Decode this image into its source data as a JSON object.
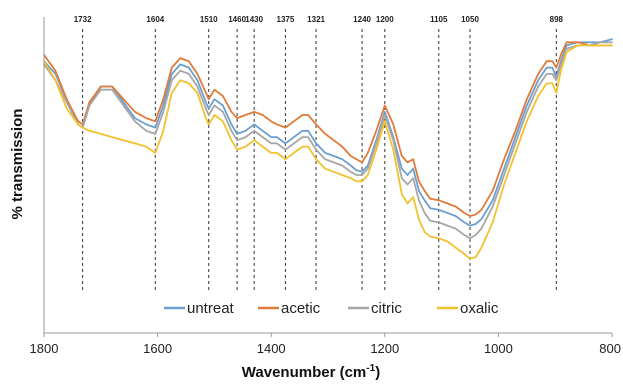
{
  "chart_data": {
    "type": "line",
    "xlabel": "Wavenumber (cm",
    "xlabel_sup": "-1",
    "xlabel_suffix": ")",
    "ylabel": "% transmission",
    "x_reversed": true,
    "xlim": [
      800,
      1800
    ],
    "ylim": [
      0,
      100
    ],
    "x_ticks": [
      1800,
      1600,
      1400,
      1200,
      1000,
      800
    ],
    "x_tick_labels": [
      "1800",
      "1600",
      "1400",
      "1200",
      "1000",
      "800"
    ],
    "grid": false,
    "legend_position": "bottom-center",
    "peak_markers": [
      1732,
      1604,
      1510,
      1460,
      1430,
      1375,
      1321,
      1240,
      1200,
      1105,
      1050,
      898
    ],
    "peak_marker_labels": [
      "1732",
      "1604",
      "1510",
      "1460",
      "1430",
      "1375",
      "1321",
      "1240",
      "1200",
      "1105",
      "1050",
      "898"
    ],
    "series": [
      {
        "name": "untreat",
        "color": "#6b9fd1",
        "x": [
          1800,
          1780,
          1760,
          1740,
          1732,
          1720,
          1700,
          1680,
          1660,
          1640,
          1620,
          1604,
          1590,
          1575,
          1560,
          1545,
          1530,
          1515,
          1510,
          1500,
          1485,
          1470,
          1460,
          1445,
          1430,
          1415,
          1400,
          1390,
          1375,
          1360,
          1345,
          1335,
          1321,
          1305,
          1290,
          1275,
          1260,
          1250,
          1240,
          1230,
          1215,
          1200,
          1185,
          1170,
          1160,
          1150,
          1140,
          1130,
          1120,
          1105,
          1090,
          1075,
          1060,
          1050,
          1040,
          1030,
          1010,
          990,
          970,
          950,
          930,
          915,
          905,
          898,
          890,
          880,
          860,
          840,
          820,
          800
        ],
        "y": [
          86,
          82,
          74,
          66,
          65,
          72,
          78,
          78,
          73,
          68,
          66,
          65,
          72,
          82,
          85,
          84,
          80,
          73,
          71,
          74,
          72,
          66,
          63,
          64,
          66,
          64,
          62,
          62,
          60,
          62,
          64,
          64,
          60,
          57,
          56,
          55,
          53,
          51.5,
          51,
          53,
          61,
          70,
          62,
          52,
          50,
          52,
          45,
          42,
          39.5,
          39,
          38,
          37,
          35,
          34,
          34.5,
          36,
          42,
          52,
          62,
          72,
          80,
          84,
          84,
          81,
          86,
          91,
          92,
          92,
          92,
          93
        ]
      },
      {
        "name": "acetic",
        "color": "#e07b39",
        "x": [
          1800,
          1780,
          1760,
          1740,
          1732,
          1720,
          1700,
          1680,
          1660,
          1640,
          1620,
          1604,
          1590,
          1575,
          1560,
          1545,
          1530,
          1515,
          1510,
          1500,
          1485,
          1470,
          1460,
          1445,
          1430,
          1415,
          1400,
          1390,
          1375,
          1360,
          1345,
          1335,
          1321,
          1305,
          1290,
          1275,
          1260,
          1250,
          1240,
          1230,
          1215,
          1200,
          1185,
          1170,
          1160,
          1150,
          1140,
          1130,
          1120,
          1105,
          1090,
          1075,
          1060,
          1050,
          1040,
          1030,
          1010,
          990,
          970,
          950,
          930,
          915,
          905,
          898,
          890,
          880,
          860,
          840,
          820,
          800
        ],
        "y": [
          88,
          83,
          74,
          67,
          66,
          73,
          78,
          78,
          74,
          70,
          68,
          67,
          74,
          84,
          87,
          86,
          82,
          76,
          74,
          77,
          75,
          70,
          68,
          69,
          70,
          69,
          67,
          66,
          65,
          67,
          69,
          69,
          66,
          63,
          61,
          59,
          56,
          55,
          54,
          57,
          64,
          72,
          66,
          56,
          54,
          55,
          48,
          45,
          42.5,
          42,
          41,
          40,
          38,
          37,
          37.5,
          39,
          45,
          55,
          64,
          74,
          82,
          86,
          86,
          84,
          88,
          92,
          92,
          91,
          91,
          91
        ]
      },
      {
        "name": "citric",
        "color": "#a6a6a6",
        "x": [
          1800,
          1780,
          1760,
          1740,
          1732,
          1720,
          1700,
          1680,
          1660,
          1640,
          1620,
          1604,
          1590,
          1575,
          1560,
          1545,
          1530,
          1515,
          1510,
          1500,
          1485,
          1470,
          1460,
          1445,
          1430,
          1415,
          1400,
          1390,
          1375,
          1360,
          1345,
          1335,
          1321,
          1305,
          1290,
          1275,
          1260,
          1250,
          1240,
          1230,
          1215,
          1200,
          1185,
          1170,
          1160,
          1150,
          1140,
          1130,
          1120,
          1105,
          1090,
          1075,
          1060,
          1050,
          1040,
          1030,
          1010,
          990,
          970,
          950,
          930,
          915,
          905,
          898,
          890,
          880,
          860,
          840,
          820,
          800
        ],
        "y": [
          85,
          80,
          73,
          66,
          65,
          72,
          77,
          77,
          72,
          67,
          64,
          63,
          70,
          80,
          83,
          82,
          78,
          71,
          69,
          72,
          70,
          64,
          61,
          62,
          64,
          62,
          60,
          60,
          58,
          60,
          62,
          62,
          58,
          55,
          54,
          53,
          51,
          50,
          50,
          52,
          60,
          69,
          61,
          49,
          47,
          49,
          42,
          38,
          35.5,
          35,
          34,
          33,
          31,
          30,
          31,
          33,
          40,
          50,
          60,
          70,
          78,
          82,
          82,
          80,
          85,
          90,
          91,
          91,
          92,
          92
        ]
      },
      {
        "name": "oxalic",
        "color": "#f2c12e",
        "x": [
          1800,
          1780,
          1760,
          1740,
          1732,
          1720,
          1700,
          1680,
          1660,
          1640,
          1620,
          1604,
          1590,
          1575,
          1560,
          1545,
          1530,
          1515,
          1510,
          1500,
          1485,
          1470,
          1460,
          1445,
          1430,
          1415,
          1400,
          1390,
          1375,
          1360,
          1345,
          1335,
          1321,
          1305,
          1290,
          1275,
          1260,
          1250,
          1240,
          1230,
          1215,
          1200,
          1185,
          1170,
          1160,
          1150,
          1140,
          1130,
          1120,
          1105,
          1090,
          1075,
          1060,
          1050,
          1040,
          1030,
          1010,
          990,
          970,
          950,
          930,
          915,
          905,
          898,
          890,
          880,
          860,
          840,
          820,
          800
        ],
        "y": [
          86,
          80,
          71,
          66,
          65,
          64,
          63,
          62,
          61,
          60,
          59,
          57,
          64,
          76,
          80,
          79,
          76,
          68,
          66,
          69,
          67,
          61,
          58,
          59,
          61,
          59,
          57,
          57,
          55,
          57,
          59,
          59,
          55,
          52,
          51,
          50,
          49,
          48,
          48,
          50,
          58,
          67,
          58,
          44,
          41,
          43,
          36,
          32,
          30.5,
          30,
          29,
          27,
          25,
          23.5,
          24,
          27,
          35,
          47,
          57,
          67,
          75,
          79,
          79,
          76,
          83,
          89,
          91,
          91,
          91,
          91
        ]
      }
    ]
  }
}
